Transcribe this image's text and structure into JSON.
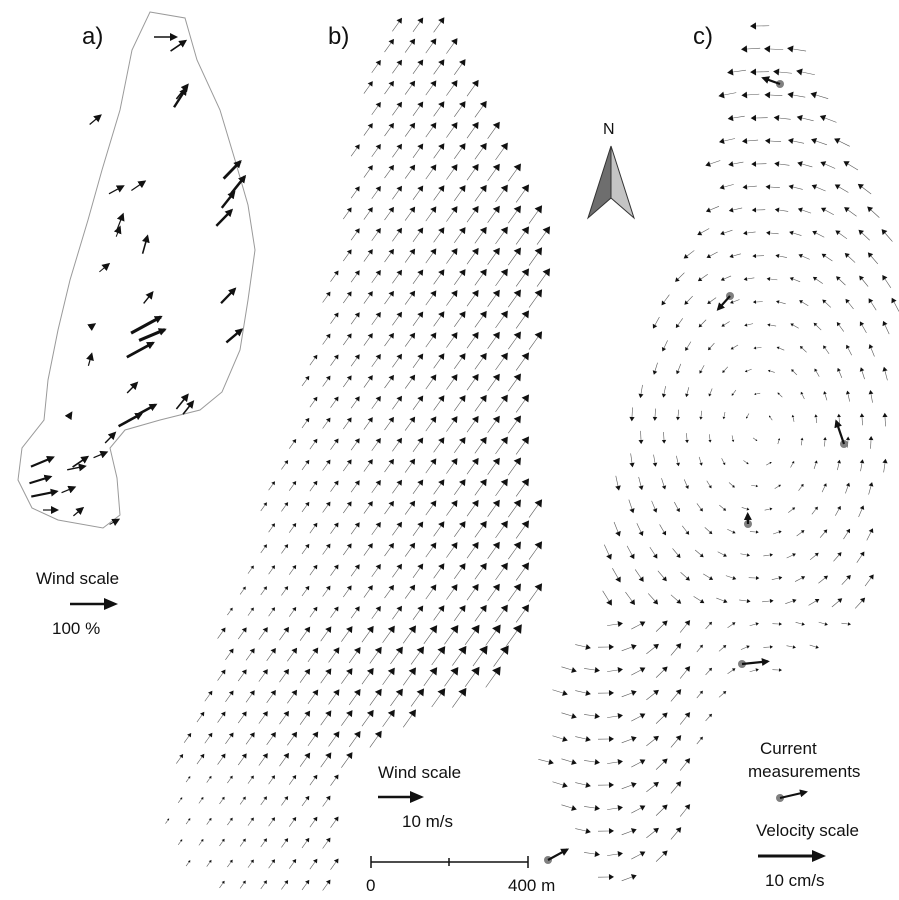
{
  "panels": [
    {
      "id": "a",
      "label": "a)"
    },
    {
      "id": "b",
      "label": "b)"
    },
    {
      "id": "c",
      "label": "c)"
    }
  ],
  "north_arrow": {
    "label": "N"
  },
  "panel_a": {
    "scale_title": "Wind scale",
    "scale_value": "100 %"
  },
  "panel_b": {
    "scale_title": "Wind scale",
    "scale_value": "10 m/s",
    "distance_bar": {
      "start": "0",
      "end": "400 m"
    }
  },
  "panel_c": {
    "measure_line1": "Current",
    "measure_line2": "measurements",
    "scale_title": "Velocity scale",
    "scale_value": "10 cm/s"
  },
  "colors": {
    "ink": "#111111",
    "outline": "#9a9a9a",
    "measurement_dot": "#808080",
    "north_dark": "#6e6e6e",
    "north_light": "#c4c4c4"
  }
}
